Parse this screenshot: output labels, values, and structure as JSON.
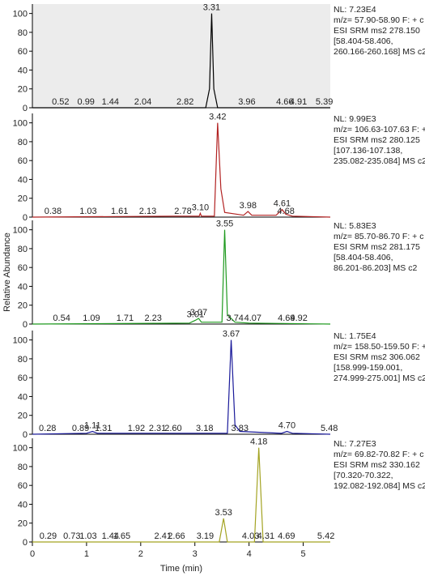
{
  "chart_data": [
    {
      "type": "line",
      "background": "#ececec",
      "xlim": [
        0,
        5.5
      ],
      "ylim": [
        0,
        110
      ],
      "yticks": [
        0,
        20,
        40,
        60,
        80,
        100
      ],
      "info": [
        "NL: 7.23E4",
        "m/z= 57.90-58.90 F: + c",
        "ESI SRM ms2 278.150",
        "[58.404-58.406,",
        "260.166-260.168]  MS c2"
      ],
      "series": [
        {
          "color": "#000000",
          "x": [
            0,
            3.2,
            3.27,
            3.31,
            3.35,
            3.42,
            5.5
          ],
          "values": [
            0,
            0,
            20,
            100,
            20,
            0,
            0
          ]
        }
      ],
      "peaks": [
        {
          "x": 0.52,
          "y": 0,
          "label": "0.52"
        },
        {
          "x": 0.99,
          "y": 0,
          "label": "0.99"
        },
        {
          "x": 1.44,
          "y": 0,
          "label": "1.44"
        },
        {
          "x": 2.04,
          "y": 0,
          "label": "2.04"
        },
        {
          "x": 2.82,
          "y": 0,
          "label": "2.82"
        },
        {
          "x": 3.31,
          "y": 100,
          "label": "3.31"
        },
        {
          "x": 3.96,
          "y": 0,
          "label": "3.96"
        },
        {
          "x": 4.66,
          "y": 0,
          "label": "4.66"
        },
        {
          "x": 4.91,
          "y": 0,
          "label": "4.91"
        },
        {
          "x": 5.39,
          "y": 0,
          "label": "5.39"
        }
      ]
    },
    {
      "type": "line",
      "xlim": [
        0,
        5.5
      ],
      "ylim": [
        0,
        110
      ],
      "yticks": [
        0,
        20,
        40,
        60,
        80,
        100
      ],
      "info": [
        "NL: 9.99E3",
        "m/z= 106.63-107.63 F: + c",
        "ESI SRM ms2 280.125",
        "[107.136-107.138,",
        "235.082-235.084]  MS c2"
      ],
      "series": [
        {
          "color": "#b22222",
          "x": [
            0,
            2.6,
            3.08,
            3.1,
            3.12,
            3.36,
            3.42,
            3.48,
            3.55,
            3.9,
            3.98,
            4.05,
            4.5,
            4.61,
            4.68,
            4.8,
            5.5
          ],
          "values": [
            0,
            1,
            1,
            4,
            1,
            1,
            100,
            30,
            5,
            2,
            6,
            2,
            2,
            8,
            3,
            1,
            0
          ]
        }
      ],
      "peaks": [
        {
          "x": 0.38,
          "y": 0,
          "label": "0.38"
        },
        {
          "x": 1.03,
          "y": 0,
          "label": "1.03"
        },
        {
          "x": 1.61,
          "y": 0,
          "label": "1.61"
        },
        {
          "x": 2.13,
          "y": 0,
          "label": "2.13"
        },
        {
          "x": 2.78,
          "y": 0,
          "label": "2.78"
        },
        {
          "x": 3.1,
          "y": 4,
          "label": "3.10"
        },
        {
          "x": 3.42,
          "y": 100,
          "label": "3.42"
        },
        {
          "x": 3.98,
          "y": 6,
          "label": "3.98"
        },
        {
          "x": 4.61,
          "y": 8,
          "label": "4.61"
        },
        {
          "x": 4.68,
          "y": 0,
          "label": "4.68"
        }
      ]
    },
    {
      "type": "line",
      "y_label": "Relative Abundance",
      "xlim": [
        0,
        5.5
      ],
      "ylim": [
        0,
        110
      ],
      "yticks": [
        0,
        20,
        40,
        60,
        80,
        100
      ],
      "info": [
        "NL: 5.83E3",
        "m/z= 85.70-86.70 F: + c",
        "ESI SRM ms2 281.175",
        "[58.404-58.406,",
        "86.201-86.203]  MS c2"
      ],
      "series": [
        {
          "color": "#1f9a1f",
          "x": [
            0,
            2.9,
            3.01,
            3.07,
            3.12,
            3.5,
            3.55,
            3.6,
            3.74,
            4.0,
            5.5
          ],
          "values": [
            0,
            1,
            4,
            6,
            2,
            2,
            100,
            10,
            2,
            1,
            0
          ]
        }
      ],
      "peaks": [
        {
          "x": 0.54,
          "y": 0,
          "label": "0.54"
        },
        {
          "x": 1.09,
          "y": 0,
          "label": "1.09"
        },
        {
          "x": 1.71,
          "y": 0,
          "label": "1.71"
        },
        {
          "x": 2.23,
          "y": 0,
          "label": "2.23"
        },
        {
          "x": 3.01,
          "y": 4,
          "label": "3.01"
        },
        {
          "x": 3.07,
          "y": 6,
          "label": "3.07"
        },
        {
          "x": 3.55,
          "y": 100,
          "label": "3.55"
        },
        {
          "x": 3.74,
          "y": 0,
          "label": "3.74"
        },
        {
          "x": 4.07,
          "y": 0,
          "label": "4.07"
        },
        {
          "x": 4.69,
          "y": 0,
          "label": "4.69"
        },
        {
          "x": 4.92,
          "y": 0,
          "label": "4.92"
        }
      ]
    },
    {
      "type": "line",
      "xlim": [
        0,
        5.5
      ],
      "ylim": [
        0,
        110
      ],
      "yticks": [
        0,
        20,
        40,
        60,
        80,
        100
      ],
      "info": [
        "NL: 1.75E4",
        "m/z= 158.50-159.50 F: + c",
        "ESI SRM ms2 306.062",
        "[158.999-159.001,",
        "274.999-275.001]  MS c2"
      ],
      "series": [
        {
          "color": "#1a1a9a",
          "x": [
            0,
            1.0,
            1.11,
            1.2,
            3.6,
            3.67,
            3.74,
            3.83,
            4.6,
            4.7,
            4.8,
            5.5
          ],
          "values": [
            0,
            1,
            3,
            1,
            1,
            100,
            10,
            3,
            1,
            3,
            1,
            0
          ]
        }
      ],
      "peaks": [
        {
          "x": 0.28,
          "y": 0,
          "label": "0.28"
        },
        {
          "x": 0.89,
          "y": 0,
          "label": "0.89"
        },
        {
          "x": 1.11,
          "y": 3,
          "label": "1.11"
        },
        {
          "x": 1.31,
          "y": 0,
          "label": "1.31"
        },
        {
          "x": 1.92,
          "y": 0,
          "label": "1.92"
        },
        {
          "x": 2.31,
          "y": 0,
          "label": "2.31"
        },
        {
          "x": 2.6,
          "y": 0,
          "label": "2.60"
        },
        {
          "x": 3.18,
          "y": 0,
          "label": "3.18"
        },
        {
          "x": 3.67,
          "y": 100,
          "label": "3.67"
        },
        {
          "x": 3.83,
          "y": 0,
          "label": "3.83"
        },
        {
          "x": 4.7,
          "y": 3,
          "label": "4.70"
        },
        {
          "x": 5.48,
          "y": 0,
          "label": "5.48"
        }
      ]
    },
    {
      "type": "line",
      "x_label": "Time (min)",
      "xlim": [
        0,
        5.5
      ],
      "xticks": [
        0,
        1,
        2,
        3,
        4,
        5
      ],
      "ylim": [
        0,
        110
      ],
      "yticks": [
        0,
        20,
        40,
        60,
        80,
        100
      ],
      "info": [
        "NL: 7.27E3",
        "m/z= 69.82-70.82 F: + c",
        "ESI SRM ms2 330.162",
        "[70.320-70.322,",
        "192.082-192.084]  MS c2"
      ],
      "series": [
        {
          "color": "#a3a322",
          "x": [
            0,
            3.45,
            3.53,
            3.6,
            4.1,
            4.18,
            4.26,
            5.5
          ],
          "values": [
            0,
            0,
            25,
            0,
            0,
            100,
            0,
            0
          ]
        }
      ],
      "peaks": [
        {
          "x": 0.29,
          "y": 0,
          "label": "0.29"
        },
        {
          "x": 0.73,
          "y": 0,
          "label": "0.73"
        },
        {
          "x": 1.03,
          "y": 0,
          "label": "1.03"
        },
        {
          "x": 1.44,
          "y": 0,
          "label": "1.44"
        },
        {
          "x": 1.65,
          "y": 0,
          "label": "1.65"
        },
        {
          "x": 2.41,
          "y": 0,
          "label": "2.41"
        },
        {
          "x": 2.66,
          "y": 0,
          "label": "2.66"
        },
        {
          "x": 3.19,
          "y": 0,
          "label": "3.19"
        },
        {
          "x": 3.53,
          "y": 25,
          "label": "3.53"
        },
        {
          "x": 4.03,
          "y": 0,
          "label": "4.03"
        },
        {
          "x": 4.18,
          "y": 100,
          "label": "4.18"
        },
        {
          "x": 4.31,
          "y": 0,
          "label": "4.31"
        },
        {
          "x": 4.69,
          "y": 0,
          "label": "4.69"
        },
        {
          "x": 5.42,
          "y": 0,
          "label": "5.42"
        }
      ]
    }
  ]
}
